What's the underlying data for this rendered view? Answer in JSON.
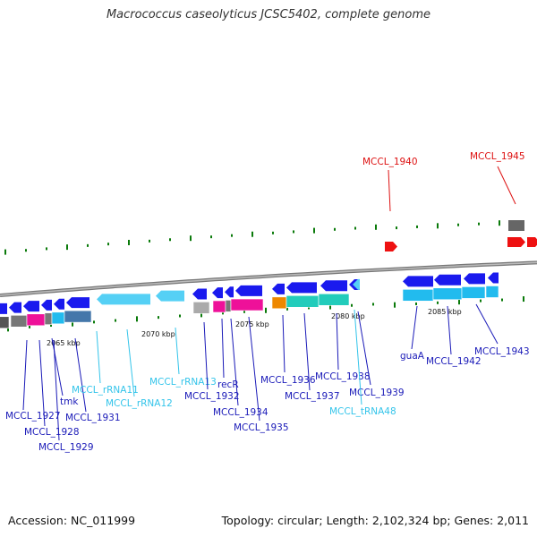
{
  "title": "Macrococcus caseolyticus JCSC5402, complete genome",
  "footer": {
    "accession": "Accession: NC_011999",
    "topology": "Topology: circular; Length: 2,102,324 bp; Genes: 2,011"
  },
  "colors": {
    "cds_blue": "#1a1aee",
    "rna_cyan": "#55d0f5",
    "red_gene": "#ee1111",
    "backbone": "#888888",
    "label_blue": "#1a1ab8",
    "label_cyan": "#33c4ea",
    "label_red": "#dd1111",
    "gc_tick": "#0a7a0a"
  },
  "scale_labels": [
    "2065 kbp",
    "2070 kbp",
    "2075 kbp",
    "2080 kbp",
    "2085 kbp"
  ],
  "genes": [
    {
      "label": "MCCL_1927",
      "color": "blue"
    },
    {
      "label": "MCCL_1928",
      "color": "blue"
    },
    {
      "label": "tmk",
      "color": "blue"
    },
    {
      "label": "MCCL_1929",
      "color": "blue"
    },
    {
      "label": "MCCL_1931",
      "color": "blue"
    },
    {
      "label": "MCCL_rRNA11",
      "color": "cyan"
    },
    {
      "label": "MCCL_rRNA12",
      "color": "cyan"
    },
    {
      "label": "MCCL_rRNA13",
      "color": "cyan"
    },
    {
      "label": "MCCL_1932",
      "color": "blue"
    },
    {
      "label": "recR",
      "color": "blue"
    },
    {
      "label": "MCCL_1934",
      "color": "blue"
    },
    {
      "label": "MCCL_1935",
      "color": "blue"
    },
    {
      "label": "MCCL_1936",
      "color": "blue"
    },
    {
      "label": "MCCL_1937",
      "color": "blue"
    },
    {
      "label": "MCCL_1938",
      "color": "blue"
    },
    {
      "label": "MCCL_1939",
      "color": "blue"
    },
    {
      "label": "MCCL_tRNA48",
      "color": "cyan"
    },
    {
      "label": "guaA",
      "color": "blue"
    },
    {
      "label": "MCCL_1942",
      "color": "blue"
    },
    {
      "label": "MCCL_1943",
      "color": "blue"
    },
    {
      "label": "MCCL_1940",
      "color": "red"
    },
    {
      "label": "MCCL_1945",
      "color": "red"
    }
  ]
}
